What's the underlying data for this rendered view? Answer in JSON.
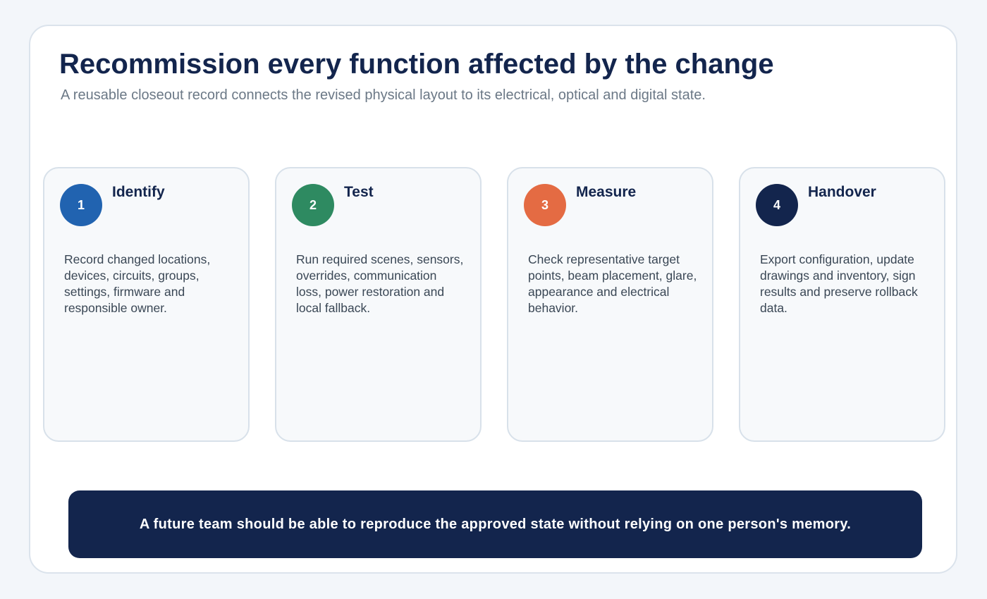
{
  "header": {
    "title": "Recommission every function affected by the change",
    "subtitle": "A reusable closeout record connects the revised physical layout to its electrical, optical and digital state."
  },
  "steps": [
    {
      "number": "1",
      "title": "Identify",
      "text": "Record changed locations, devices, circuits, groups, settings, firmware and responsible owner.",
      "color": "#2163b0"
    },
    {
      "number": "2",
      "title": "Test",
      "text": "Run required scenes, sensors, overrides, communication loss, power restoration and local fallback.",
      "color": "#2e8a61"
    },
    {
      "number": "3",
      "title": "Measure",
      "text": "Check representative target points, beam placement, glare, appearance and electrical behavior.",
      "color": "#e46b43"
    },
    {
      "number": "4",
      "title": "Handover",
      "text": "Export configuration, update drawings and inventory, sign results and preserve rollback data.",
      "color": "#13254d"
    }
  ],
  "footer": {
    "text": "A future team should be able to reproduce the approved state without relying on one person's memory."
  }
}
